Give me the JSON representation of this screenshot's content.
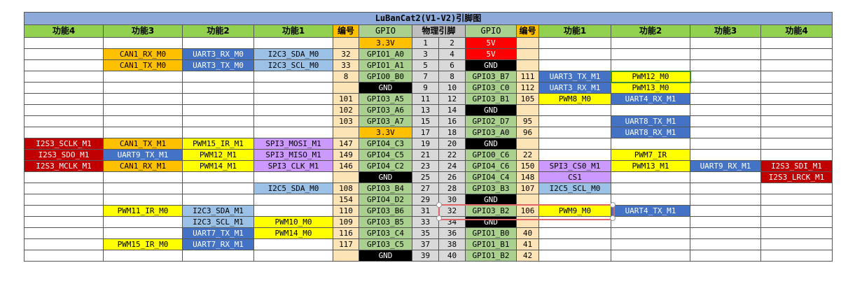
{
  "title": "LuBanCat2(V1-V2)引脚图",
  "headers": [
    "功能4",
    "功能3",
    "功能2",
    "功能1",
    "编号",
    "GPIO",
    "物理引脚",
    "GPIO",
    "编号",
    "功能1",
    "功能2",
    "功能3",
    "功能4"
  ],
  "colors": {
    "yellow": "#ffff00",
    "orange": "#ffc000",
    "blue": "#4472c4",
    "lblue": "#9bc2e6",
    "purple": "#cc99ff",
    "red": "#c00000",
    "lred": "#ff0000",
    "black": "#000000",
    "green": "#a9d08e",
    "gray": "#d9d9d9",
    "num": "#fce4b6"
  },
  "rows": [
    [
      [
        "",
        ""
      ],
      [
        "",
        ""
      ],
      [
        "",
        ""
      ],
      [
        "",
        ""
      ],
      [
        "",
        "num"
      ],
      [
        "3.3V",
        "orange"
      ],
      [
        "1",
        "gray"
      ],
      [
        "2",
        "gray"
      ],
      [
        "5V",
        "lred"
      ],
      [
        "",
        "num"
      ],
      [
        "",
        ""
      ],
      [
        "",
        ""
      ],
      [
        "",
        ""
      ],
      [
        "",
        ""
      ]
    ],
    [
      [
        "",
        ""
      ],
      [
        "CAN1_RX_M0",
        "orange"
      ],
      [
        "UART3_RX_M0",
        "blue"
      ],
      [
        "I2C3_SDA_M0",
        "lblue"
      ],
      [
        "32",
        "num"
      ],
      [
        "GPIO1_A0",
        "green"
      ],
      [
        "3",
        "gray"
      ],
      [
        "4",
        "gray"
      ],
      [
        "5V",
        "lred"
      ],
      [
        "",
        "num"
      ],
      [
        "",
        ""
      ],
      [
        "",
        ""
      ],
      [
        "",
        ""
      ],
      [
        "",
        ""
      ]
    ],
    [
      [
        "",
        ""
      ],
      [
        "CAN1_TX_M0",
        "orange"
      ],
      [
        "UART3_TX_M0",
        "blue"
      ],
      [
        "I2C3_SCL_M0",
        "lblue"
      ],
      [
        "33",
        "num"
      ],
      [
        "GPIO1_A1",
        "green"
      ],
      [
        "5",
        "gray"
      ],
      [
        "6",
        "gray"
      ],
      [
        "GND",
        "black"
      ],
      [
        "",
        "num"
      ],
      [
        "",
        ""
      ],
      [
        "",
        ""
      ],
      [
        "",
        ""
      ],
      [
        "",
        ""
      ]
    ],
    [
      [
        "",
        ""
      ],
      [
        "",
        ""
      ],
      [
        "",
        ""
      ],
      [
        "",
        ""
      ],
      [
        "8",
        "num"
      ],
      [
        "GPIO0_B0",
        "green"
      ],
      [
        "7",
        "gray"
      ],
      [
        "8",
        "gray"
      ],
      [
        "GPIO3_B7",
        "green"
      ],
      [
        "111",
        "num"
      ],
      [
        "UART3_TX_M1",
        "blue"
      ],
      [
        "PWM12_M0",
        "yellow"
      ],
      [
        "",
        ""
      ],
      [
        "",
        ""
      ]
    ],
    [
      [
        "",
        ""
      ],
      [
        "",
        ""
      ],
      [
        "",
        ""
      ],
      [
        "",
        ""
      ],
      [
        "",
        "num"
      ],
      [
        "GND",
        "black"
      ],
      [
        "9",
        "gray"
      ],
      [
        "10",
        "gray"
      ],
      [
        "GPIO3_C0",
        "green"
      ],
      [
        "112",
        "num"
      ],
      [
        "UART3_RX_M1",
        "blue"
      ],
      [
        "PWM13_M0",
        "yellow"
      ],
      [
        "",
        ""
      ],
      [
        "",
        ""
      ]
    ],
    [
      [
        "",
        ""
      ],
      [
        "",
        ""
      ],
      [
        "",
        ""
      ],
      [
        "",
        ""
      ],
      [
        "101",
        "num"
      ],
      [
        "GPIO3_A5",
        "green"
      ],
      [
        "11",
        "gray"
      ],
      [
        "12",
        "gray"
      ],
      [
        "GPIO3_B1",
        "green"
      ],
      [
        "105",
        "num"
      ],
      [
        "PWM8_M0",
        "yellow"
      ],
      [
        "UART4_RX_M1",
        "blue"
      ],
      [
        "",
        ""
      ],
      [
        "",
        ""
      ]
    ],
    [
      [
        "",
        ""
      ],
      [
        "",
        ""
      ],
      [
        "",
        ""
      ],
      [
        "",
        ""
      ],
      [
        "102",
        "num"
      ],
      [
        "GPIO3_A6",
        "green"
      ],
      [
        "13",
        "gray"
      ],
      [
        "14",
        "gray"
      ],
      [
        "GND",
        "black"
      ],
      [
        "",
        "num"
      ],
      [
        "",
        ""
      ],
      [
        "",
        ""
      ],
      [
        "",
        ""
      ],
      [
        "",
        ""
      ]
    ],
    [
      [
        "",
        ""
      ],
      [
        "",
        ""
      ],
      [
        "",
        ""
      ],
      [
        "",
        ""
      ],
      [
        "103",
        "num"
      ],
      [
        "GPIO3_A7",
        "green"
      ],
      [
        "15",
        "gray"
      ],
      [
        "16",
        "gray"
      ],
      [
        "GPIO2_D7",
        "green"
      ],
      [
        "95",
        "num"
      ],
      [
        "",
        ""
      ],
      [
        "UART8_TX_M1",
        "blue"
      ],
      [
        "",
        ""
      ],
      [
        "",
        ""
      ]
    ],
    [
      [
        "",
        ""
      ],
      [
        "",
        ""
      ],
      [
        "",
        ""
      ],
      [
        "",
        ""
      ],
      [
        "",
        "num"
      ],
      [
        "3.3V",
        "orange"
      ],
      [
        "17",
        "gray"
      ],
      [
        "18",
        "gray"
      ],
      [
        "GPIO3_A0",
        "green"
      ],
      [
        "96",
        "num"
      ],
      [
        "",
        ""
      ],
      [
        "UART8_RX_M1",
        "blue"
      ],
      [
        "",
        ""
      ],
      [
        "",
        ""
      ]
    ],
    [
      [
        "I2S3_SCLK_M1",
        "red"
      ],
      [
        "CAN1_TX_M1",
        "orange"
      ],
      [
        "PWM15_IR_M1",
        "yellow"
      ],
      [
        "SPI3_MOSI_M1",
        "purple"
      ],
      [
        "147",
        "num"
      ],
      [
        "GPIO4_C3",
        "green"
      ],
      [
        "19",
        "gray"
      ],
      [
        "20",
        "gray"
      ],
      [
        "GND",
        "black"
      ],
      [
        "",
        "num"
      ],
      [
        "",
        ""
      ],
      [
        "",
        ""
      ],
      [
        "",
        ""
      ],
      [
        "",
        ""
      ]
    ],
    [
      [
        "I2S3_SDO_M1",
        "red"
      ],
      [
        "UART9_TX_M1",
        "blue"
      ],
      [
        "PWM12_M1",
        "yellow"
      ],
      [
        "SPI3_MISO_M1",
        "purple"
      ],
      [
        "149",
        "num"
      ],
      [
        "GPIO4_C5",
        "green"
      ],
      [
        "21",
        "gray"
      ],
      [
        "22",
        "gray"
      ],
      [
        "GPIO0_C6",
        "green"
      ],
      [
        "22",
        "num"
      ],
      [
        "",
        ""
      ],
      [
        "PWM7_IR",
        "yellow"
      ],
      [
        "",
        ""
      ],
      [
        "",
        ""
      ]
    ],
    [
      [
        "I2S3_MCLK_M1",
        "red"
      ],
      [
        "CAN1_RX_M1",
        "orange"
      ],
      [
        "PWM14_M1",
        "yellow"
      ],
      [
        "SPI3_CLK_M1",
        "purple"
      ],
      [
        "146",
        "num"
      ],
      [
        "GPIO4_C2",
        "green"
      ],
      [
        "23",
        "gray"
      ],
      [
        "24",
        "gray"
      ],
      [
        "GPIO4_C6",
        "green"
      ],
      [
        "150",
        "num"
      ],
      [
        "SPI3_CS0_M1",
        "purple"
      ],
      [
        "PWM13_M1",
        "yellow"
      ],
      [
        "UART9_RX_M1",
        "blue"
      ],
      [
        "I2S3_SDI_M1",
        "red"
      ]
    ],
    [
      [
        "",
        ""
      ],
      [
        "",
        ""
      ],
      [
        "",
        ""
      ],
      [
        "",
        ""
      ],
      [
        "",
        "num"
      ],
      [
        "GND",
        "black"
      ],
      [
        "25",
        "gray"
      ],
      [
        "26",
        "gray"
      ],
      [
        "GPIO4_C4",
        "green"
      ],
      [
        "148",
        "num"
      ],
      [
        "CS1",
        "purple"
      ],
      [
        "",
        ""
      ],
      [
        "",
        ""
      ],
      [
        "I2S3_LRCK_M1",
        "red"
      ]
    ],
    [
      [
        "",
        ""
      ],
      [
        "",
        ""
      ],
      [
        "",
        ""
      ],
      [
        "I2C5_SDA_M0",
        "lblue"
      ],
      [
        "108",
        "num"
      ],
      [
        "GPIO3_B4",
        "green"
      ],
      [
        "27",
        "gray"
      ],
      [
        "28",
        "gray"
      ],
      [
        "GPIO3_B3",
        "green"
      ],
      [
        "107",
        "num"
      ],
      [
        "I2C5_SCL_M0",
        "lblue"
      ],
      [
        "",
        ""
      ],
      [
        "",
        ""
      ],
      [
        "",
        ""
      ]
    ],
    [
      [
        "",
        ""
      ],
      [
        "",
        ""
      ],
      [
        "",
        ""
      ],
      [
        "",
        ""
      ],
      [
        "154",
        "num"
      ],
      [
        "GPIO4_D2",
        "green"
      ],
      [
        "29",
        "gray"
      ],
      [
        "30",
        "gray"
      ],
      [
        "GND",
        "black"
      ],
      [
        "",
        "num"
      ],
      [
        "",
        ""
      ],
      [
        "",
        ""
      ],
      [
        "",
        ""
      ],
      [
        "",
        ""
      ]
    ],
    [
      [
        "",
        ""
      ],
      [
        "PWM11_IR_M0",
        "yellow"
      ],
      [
        "I2C3_SDA_M1",
        "lblue"
      ],
      [
        "",
        ""
      ],
      [
        "110",
        "num"
      ],
      [
        "GPIO3_B6",
        "green"
      ],
      [
        "31",
        "gray"
      ],
      [
        "32",
        "gray"
      ],
      [
        "GPIO3_B2",
        "green"
      ],
      [
        "106",
        "num"
      ],
      [
        "PWM9_M0",
        "yellow"
      ],
      [
        "UART4_TX_M1",
        "blue"
      ],
      [
        "",
        ""
      ],
      [
        "",
        ""
      ]
    ],
    [
      [
        "",
        ""
      ],
      [
        "",
        ""
      ],
      [
        "I2C3_SCL_M1",
        "lblue"
      ],
      [
        "PWM10_M0",
        "yellow"
      ],
      [
        "109",
        "num"
      ],
      [
        "GPIO3_B5",
        "green"
      ],
      [
        "33",
        "gray"
      ],
      [
        "34",
        "gray"
      ],
      [
        "GND",
        "black"
      ],
      [
        "",
        "num"
      ],
      [
        "",
        ""
      ],
      [
        "",
        ""
      ],
      [
        "",
        ""
      ],
      [
        "",
        ""
      ]
    ],
    [
      [
        "",
        ""
      ],
      [
        "",
        ""
      ],
      [
        "UART7_TX_M1",
        "blue"
      ],
      [
        "PWM14_M0",
        "yellow"
      ],
      [
        "116",
        "num"
      ],
      [
        "GPIO3_C4",
        "green"
      ],
      [
        "35",
        "gray"
      ],
      [
        "36",
        "gray"
      ],
      [
        "GPIO1_B0",
        "green"
      ],
      [
        "40",
        "num"
      ],
      [
        "",
        ""
      ],
      [
        "",
        ""
      ],
      [
        "",
        ""
      ],
      [
        "",
        ""
      ]
    ],
    [
      [
        "",
        ""
      ],
      [
        "PWM15_IR_M0",
        "yellow"
      ],
      [
        "UART7_RX_M1",
        "blue"
      ],
      [
        "",
        ""
      ],
      [
        "117",
        "num"
      ],
      [
        "GPIO3_C5",
        "green"
      ],
      [
        "37",
        "gray"
      ],
      [
        "38",
        "gray"
      ],
      [
        "GPIO1_B1",
        "green"
      ],
      [
        "41",
        "num"
      ],
      [
        "",
        ""
      ],
      [
        "",
        ""
      ],
      [
        "",
        ""
      ],
      [
        "",
        ""
      ]
    ],
    [
      [
        "",
        ""
      ],
      [
        "",
        ""
      ],
      [
        "",
        ""
      ],
      [
        "",
        ""
      ],
      [
        "",
        "num"
      ],
      [
        "GND",
        "black"
      ],
      [
        "39",
        "gray"
      ],
      [
        "40",
        "gray"
      ],
      [
        "GPIO1_B2",
        "green"
      ],
      [
        "42",
        "num"
      ],
      [
        "",
        ""
      ],
      [
        "",
        ""
      ],
      [
        "",
        ""
      ],
      [
        "",
        ""
      ]
    ]
  ]
}
